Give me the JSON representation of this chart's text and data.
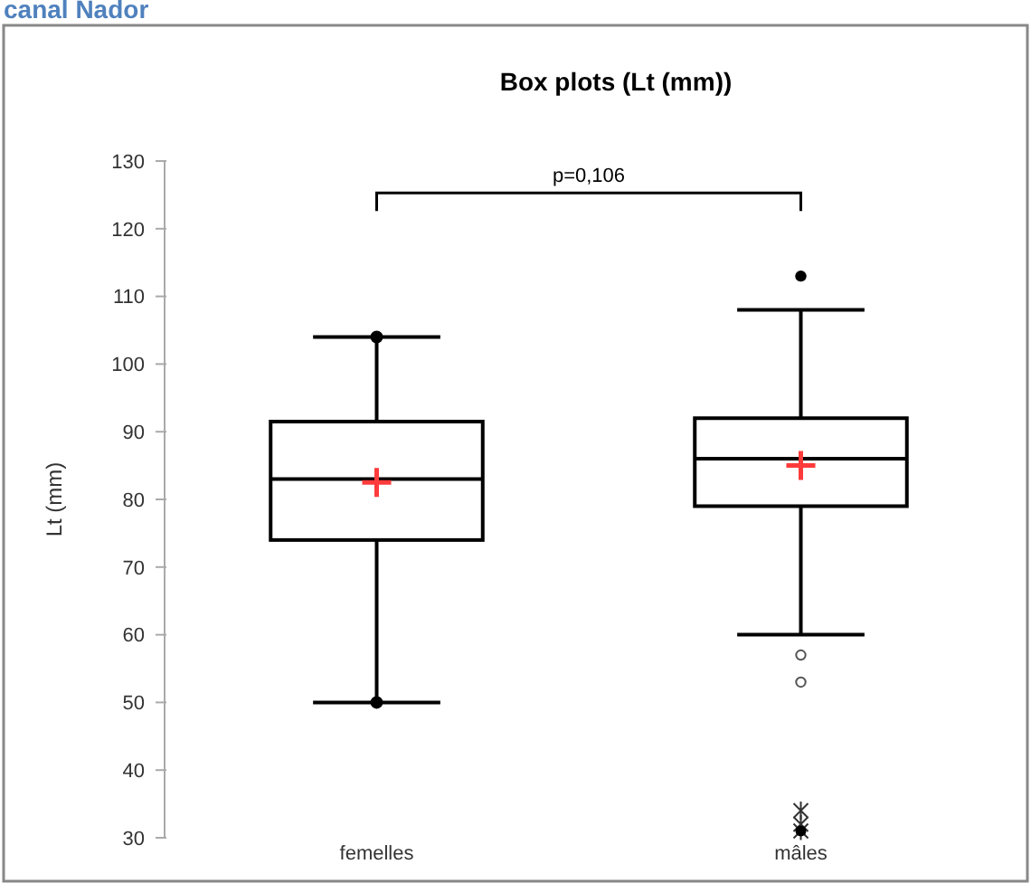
{
  "chart_data": {
    "type": "box",
    "title": "Box plots (Lt (mm))",
    "ylabel": "Lt (mm)",
    "categories": [
      "femelles",
      "mâles"
    ],
    "boxes": [
      {
        "low": 50,
        "q1": 74,
        "median": 83,
        "q3": 91.5,
        "high": 104,
        "mean": 82.5
      },
      {
        "low": 60,
        "q1": 79,
        "median": 86,
        "q3": 92,
        "high": 108,
        "mean": 85,
        "outliers": [
          113,
          57,
          53,
          34,
          32,
          31
        ]
      }
    ],
    "ylim": [
      30,
      130
    ],
    "yticks": [
      30,
      40,
      50,
      60,
      70,
      80,
      90,
      100,
      110,
      120,
      130
    ],
    "grid": false,
    "annotations": [
      "canal Nador",
      "p=0,106"
    ]
  }
}
